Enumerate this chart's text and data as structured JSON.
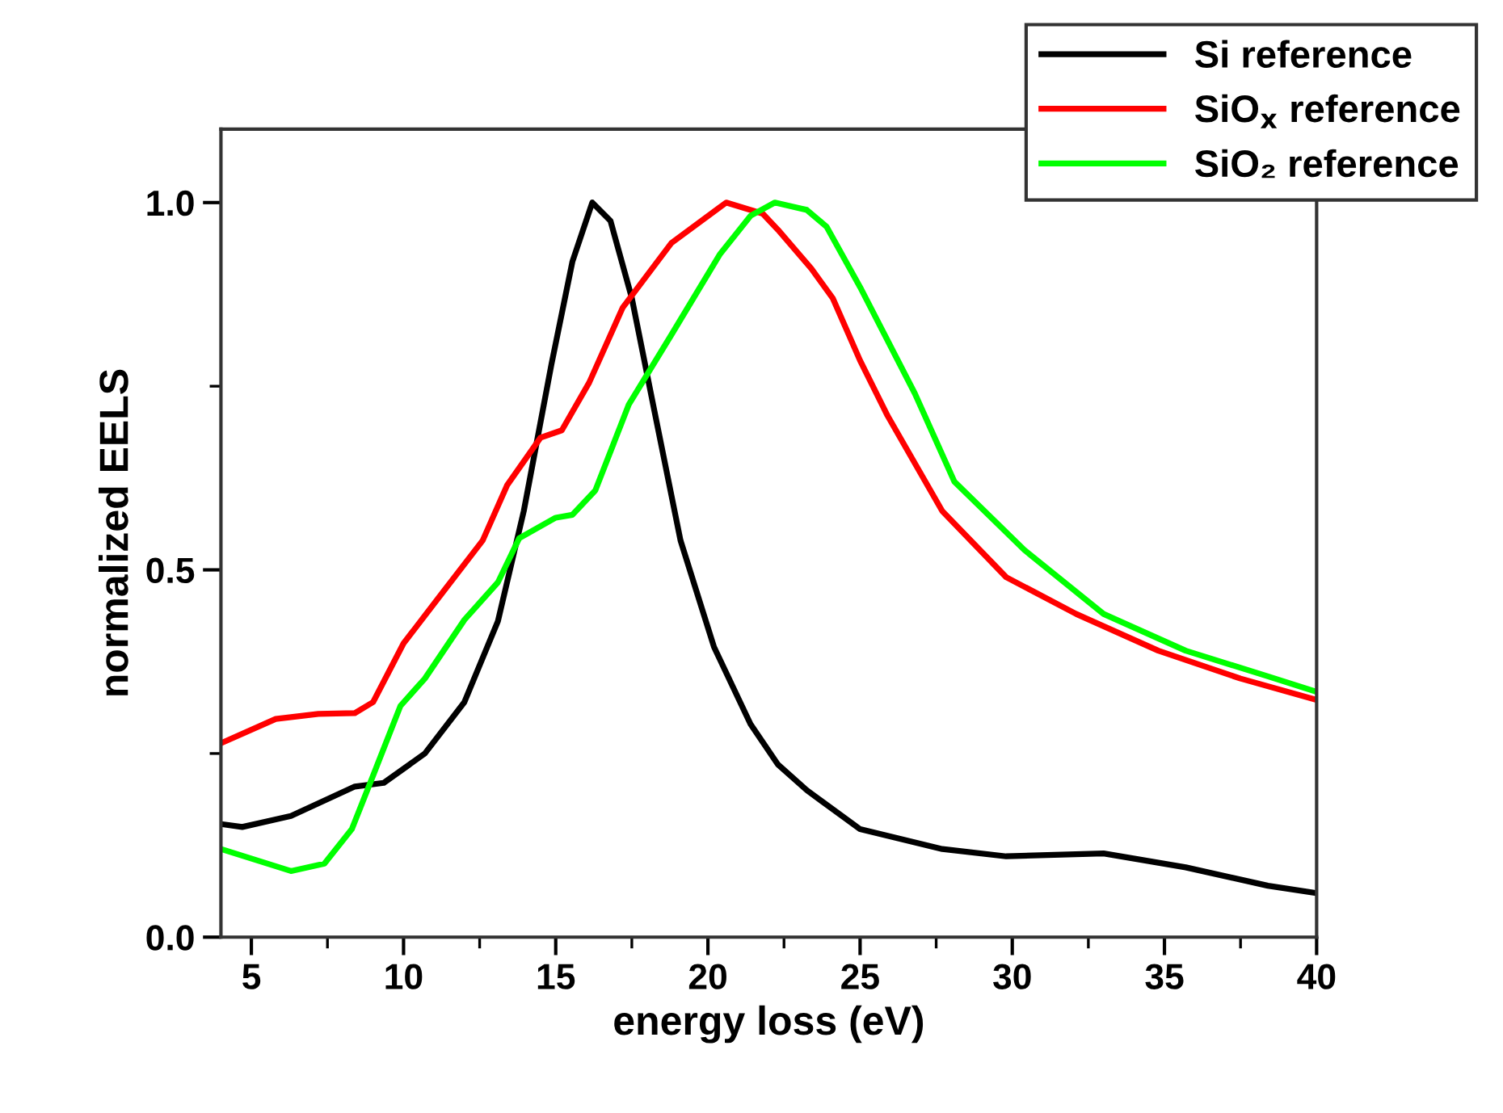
{
  "chart_data": {
    "type": "line",
    "xlabel": "energy loss (eV)",
    "ylabel": "normalized EELS",
    "xlim": [
      4,
      40
    ],
    "ylim": [
      0,
      1.1
    ],
    "xticks": [
      5,
      10,
      15,
      20,
      25,
      30,
      35,
      40
    ],
    "yticks": [
      {
        "value": 0,
        "label": "0.0"
      },
      0.5,
      {
        "value": 1,
        "label": "1.0"
      }
    ],
    "grid": false,
    "legend": "top right",
    "line_style": "solid",
    "marker": "none",
    "series": [
      {
        "name": "Si reference",
        "color": "#000000",
        "x": [
          4.0,
          4.7,
          6.3,
          8.4,
          9.35,
          10.7,
          12.0,
          13.1,
          13.95,
          14.86,
          15.55,
          16.2,
          16.8,
          17.5,
          18.2,
          19.1,
          20.2,
          21.4,
          22.3,
          23.25,
          25.0,
          27.7,
          29.8,
          33.0,
          35.7,
          38.4,
          40.0
        ],
        "values": [
          0.154,
          0.15,
          0.165,
          0.205,
          0.21,
          0.25,
          0.32,
          0.43,
          0.58,
          0.78,
          0.92,
          1.0,
          0.975,
          0.87,
          0.725,
          0.54,
          0.395,
          0.29,
          0.235,
          0.2,
          0.147,
          0.12,
          0.11,
          0.114,
          0.095,
          0.07,
          0.06
        ]
      },
      {
        "name": "SiO$_{x}$ reference",
        "color": "#ff0000",
        "x": [
          4.0,
          5.8,
          7.2,
          8.4,
          9.0,
          10.0,
          11.3,
          12.6,
          13.4,
          14.5,
          15.2,
          16.1,
          17.2,
          18.8,
          20.6,
          21.8,
          22.3,
          23.4,
          24.1,
          25.0,
          25.9,
          27.7,
          29.8,
          32.1,
          34.8,
          37.5,
          40.0
        ],
        "values": [
          0.264,
          0.297,
          0.304,
          0.305,
          0.32,
          0.4,
          0.47,
          0.54,
          0.615,
          0.68,
          0.69,
          0.755,
          0.857,
          0.945,
          1.0,
          0.985,
          0.963,
          0.91,
          0.87,
          0.785,
          0.71,
          0.58,
          0.49,
          0.44,
          0.39,
          0.352,
          0.323
        ]
      },
      {
        "name": "SiO₂ reference",
        "color": "#00ff00",
        "x": [
          4.0,
          6.3,
          7.4,
          8.3,
          9.0,
          9.9,
          10.7,
          12.0,
          13.1,
          13.8,
          15.0,
          15.55,
          16.3,
          17.4,
          18.8,
          20.4,
          21.4,
          22.2,
          23.25,
          23.9,
          25.0,
          26.8,
          28.1,
          30.4,
          33.0,
          35.7,
          38.4,
          40.0
        ],
        "values": [
          0.12,
          0.09,
          0.1,
          0.147,
          0.22,
          0.315,
          0.352,
          0.432,
          0.483,
          0.543,
          0.571,
          0.575,
          0.608,
          0.725,
          0.82,
          0.93,
          0.982,
          1.0,
          0.99,
          0.967,
          0.885,
          0.74,
          0.62,
          0.527,
          0.44,
          0.39,
          0.355,
          0.334
        ]
      }
    ]
  }
}
